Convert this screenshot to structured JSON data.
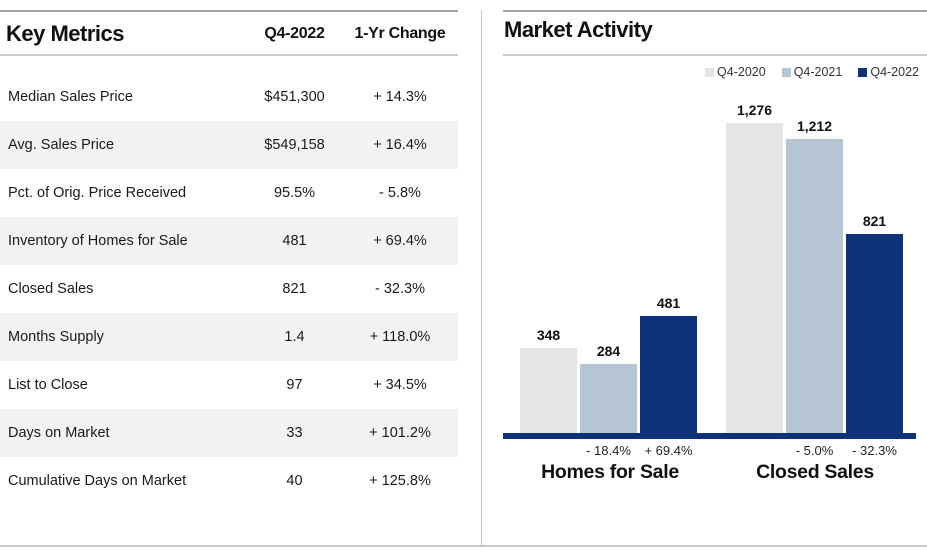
{
  "colors": {
    "accent_navy": "#0d3278",
    "bar_light_gray": "#e4e5e7",
    "bar_blue_gray": "#b6c5d3",
    "table_alt_row": "#f2f2f2"
  },
  "chart_data": [
    {
      "type": "table",
      "title": "Key Metrics",
      "columns": [
        "",
        "Q4-2022",
        "1-Yr Change"
      ],
      "rows": [
        [
          "Median Sales Price",
          "$451,300",
          "+ 14.3%"
        ],
        [
          "Avg. Sales Price",
          "$549,158",
          "+ 16.4%"
        ],
        [
          "Pct. of Orig. Price Received",
          "95.5%",
          "- 5.8%"
        ],
        [
          "Inventory of Homes for Sale",
          "481",
          "+ 69.4%"
        ],
        [
          "Closed Sales",
          "821",
          "- 32.3%"
        ],
        [
          "Months Supply",
          "1.4",
          "+ 118.0%"
        ],
        [
          "List to Close",
          "97",
          "+ 34.5%"
        ],
        [
          "Days on Market",
          "33",
          "+ 101.2%"
        ],
        [
          "Cumulative Days on Market",
          "40",
          "+ 125.8%"
        ]
      ]
    },
    {
      "type": "bar",
      "title": "Market Activity",
      "categories": [
        "Homes for Sale",
        "Closed Sales"
      ],
      "series": [
        {
          "name": "Q4-2020",
          "color": "#e4e5e7",
          "values": [
            348,
            1276
          ],
          "value_labels": [
            "348",
            "1,276"
          ]
        },
        {
          "name": "Q4-2021",
          "color": "#b6c5d3",
          "values": [
            284,
            1212
          ],
          "value_labels": [
            "284",
            "1,212"
          ],
          "change_labels": [
            "- 18.4%",
            "- 5.0%"
          ]
        },
        {
          "name": "Q4-2022",
          "color": "#0d3278",
          "values": [
            481,
            821
          ],
          "value_labels": [
            "481",
            "821"
          ],
          "change_labels": [
            "+ 69.4%",
            "- 32.3%"
          ]
        }
      ],
      "ylim": [
        0,
        1300
      ],
      "grid": false,
      "legend_position": "top-right",
      "axis_color": "#0d3278"
    }
  ]
}
